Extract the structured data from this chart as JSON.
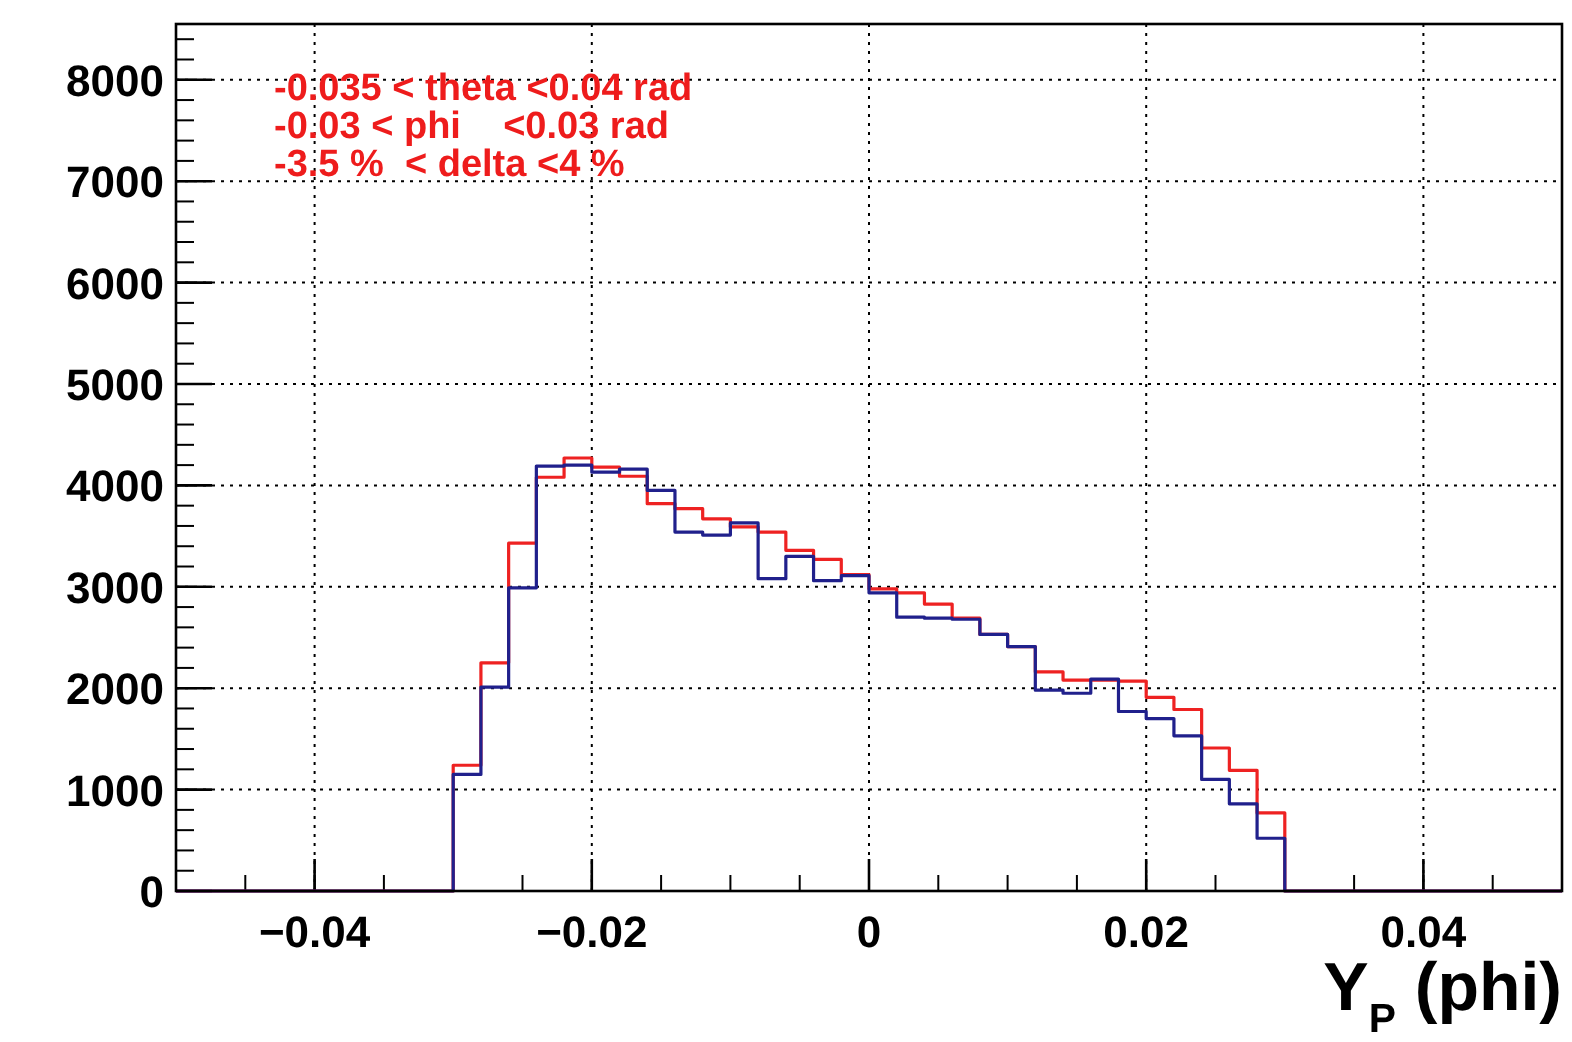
{
  "chart_data": {
    "type": "histogram",
    "xlabel": "Y$_{P}$ (phi)",
    "bins": [
      -0.05,
      -0.048,
      -0.046,
      -0.044,
      -0.042,
      -0.04,
      -0.038,
      -0.036,
      -0.034,
      -0.032,
      -0.03,
      -0.028,
      -0.026,
      -0.024,
      -0.022,
      -0.02,
      -0.018,
      -0.016,
      -0.014,
      -0.012,
      -0.01,
      -0.008,
      -0.006,
      -0.004,
      -0.002,
      0,
      0.002,
      0.004,
      0.006,
      0.008,
      0.01,
      0.012,
      0.014,
      0.016,
      0.018,
      0.02,
      0.022,
      0.024,
      0.026,
      0.028,
      0.03,
      0.032,
      0.034,
      0.036,
      0.038,
      0.04,
      0.042,
      0.044,
      0.046,
      0.048,
      0.05
    ],
    "series": [
      {
        "color": "#ee2222",
        "values": [
          0,
          0,
          0,
          0,
          0,
          0,
          0,
          0,
          0,
          0,
          1240,
          2250,
          3430,
          4080,
          4270,
          4180,
          4090,
          3820,
          3770,
          3670,
          3590,
          3540,
          3360,
          3270,
          3120,
          2980,
          2940,
          2830,
          2690,
          2530,
          2410,
          2160,
          2080,
          2080,
          2070,
          1910,
          1790,
          1410,
          1190,
          770,
          0,
          0,
          0,
          0,
          0,
          0,
          0,
          0,
          0,
          0
        ]
      },
      {
        "color": "#20208c",
        "values": [
          0,
          0,
          0,
          0,
          0,
          0,
          0,
          0,
          0,
          0,
          1150,
          2010,
          2990,
          4190,
          4200,
          4130,
          4160,
          3950,
          3540,
          3510,
          3630,
          3080,
          3300,
          3060,
          3110,
          2940,
          2700,
          2690,
          2680,
          2530,
          2410,
          1980,
          1950,
          2090,
          1770,
          1700,
          1530,
          1100,
          860,
          520,
          0,
          0,
          0,
          0,
          0,
          0,
          0,
          0,
          0,
          0
        ]
      }
    ],
    "xlim": [
      -0.05,
      0.05
    ],
    "xticks": [
      {
        "value": -0.04,
        "label": "−0.04"
      },
      {
        "value": -0.02,
        "label": "−0.02"
      },
      0,
      0.02,
      0.04
    ],
    "ylim": [
      0,
      8550
    ],
    "yticks": [
      0,
      1000,
      2000,
      3000,
      4000,
      5000,
      6000,
      7000,
      8000
    ],
    "grid": true,
    "line_style": "solid",
    "annotations": [
      "-0.035 < theta <0.04 rad",
      "-0.03 < phi    <0.03 rad",
      "-3.5 %  < delta <4 %"
    ]
  }
}
